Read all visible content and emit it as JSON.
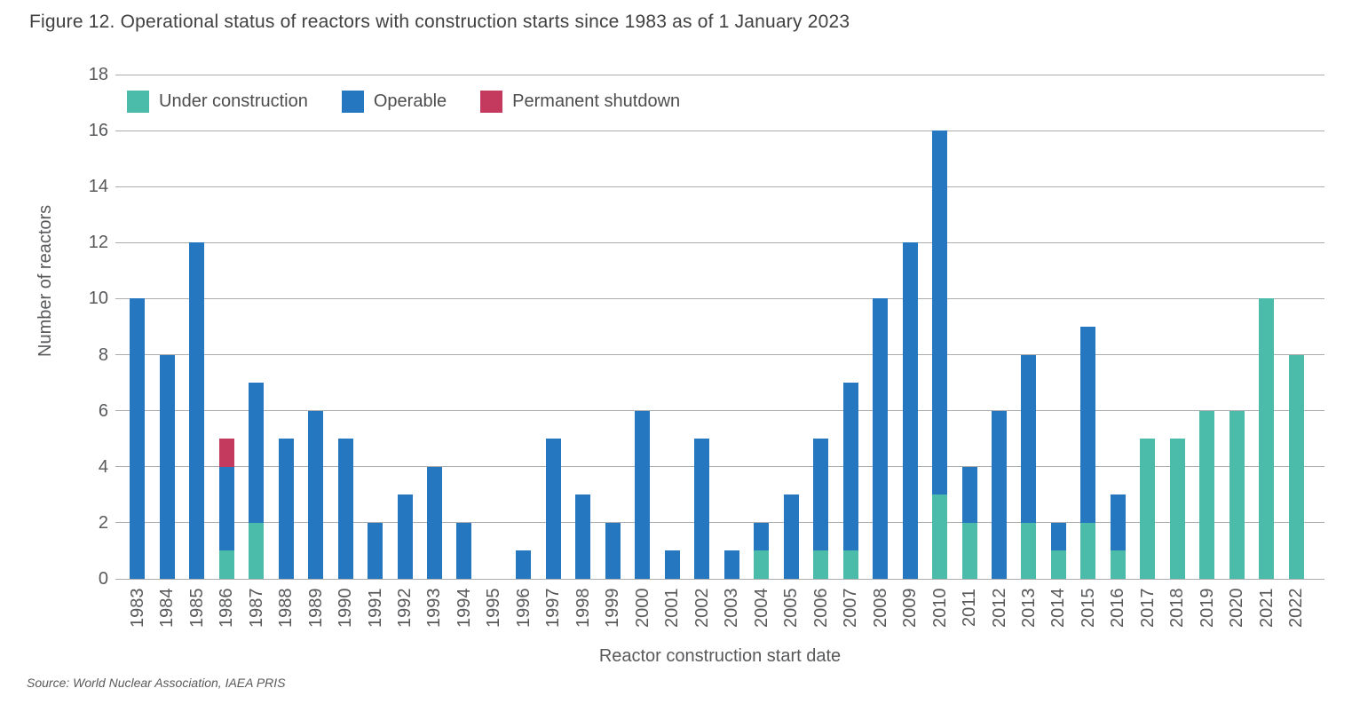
{
  "figure": {
    "title": "Figure 12. Operational status of reactors with construction starts since 1983 as of 1 January 2023",
    "source": "Source: World Nuclear Association, IAEA PRIS"
  },
  "colors": {
    "under_construction": "#4abca9",
    "operable": "#2577c0",
    "permanent_shutdown": "#c43a5e",
    "gridline": "#aaacae",
    "axis_text": "#58595b",
    "title_text": "#414042",
    "background": "#ffffff"
  },
  "chart_data": {
    "type": "bar",
    "stacked": true,
    "title": "Figure 12. Operational status of reactors with construction starts since 1983 as of 1 January 2023",
    "xlabel": "Reactor construction start date",
    "ylabel": "Number of reactors",
    "ylim": [
      0,
      18
    ],
    "ytick_step": 2,
    "grid": true,
    "legend_position": "top-left inside plot area",
    "categories": [
      "1983",
      "1984",
      "1985",
      "1986",
      "1987",
      "1988",
      "1989",
      "1990",
      "1991",
      "1992",
      "1993",
      "1994",
      "1995",
      "1996",
      "1997",
      "1998",
      "1999",
      "2000",
      "2001",
      "2002",
      "2003",
      "2004",
      "2005",
      "2006",
      "2007",
      "2008",
      "2009",
      "2010",
      "2011",
      "2012",
      "2013",
      "2014",
      "2015",
      "2016",
      "2017",
      "2018",
      "2019",
      "2020",
      "2021",
      "2022"
    ],
    "series": [
      {
        "name": "Under construction",
        "color": "#4abca9",
        "values": [
          0,
          0,
          0,
          1,
          2,
          0,
          0,
          0,
          0,
          0,
          0,
          0,
          0,
          0,
          0,
          0,
          0,
          0,
          0,
          0,
          0,
          1,
          0,
          1,
          1,
          0,
          0,
          3,
          2,
          0,
          2,
          1,
          2,
          1,
          5,
          5,
          6,
          6,
          10,
          8
        ]
      },
      {
        "name": "Operable",
        "color": "#2577c0",
        "values": [
          10,
          8,
          12,
          3,
          5,
          5,
          6,
          5,
          2,
          3,
          4,
          2,
          0,
          1,
          5,
          3,
          2,
          6,
          1,
          5,
          1,
          1,
          3,
          4,
          6,
          10,
          12,
          13,
          2,
          6,
          6,
          1,
          7,
          2,
          0,
          0,
          0,
          0,
          0,
          0
        ]
      },
      {
        "name": "Permanent shutdown",
        "color": "#c43a5e",
        "values": [
          0,
          0,
          0,
          1,
          0,
          0,
          0,
          0,
          0,
          0,
          0,
          0,
          0,
          0,
          0,
          0,
          0,
          0,
          0,
          0,
          0,
          0,
          0,
          0,
          0,
          0,
          0,
          0,
          0,
          0,
          0,
          0,
          0,
          0,
          0,
          0,
          0,
          0,
          0,
          0
        ]
      }
    ]
  }
}
